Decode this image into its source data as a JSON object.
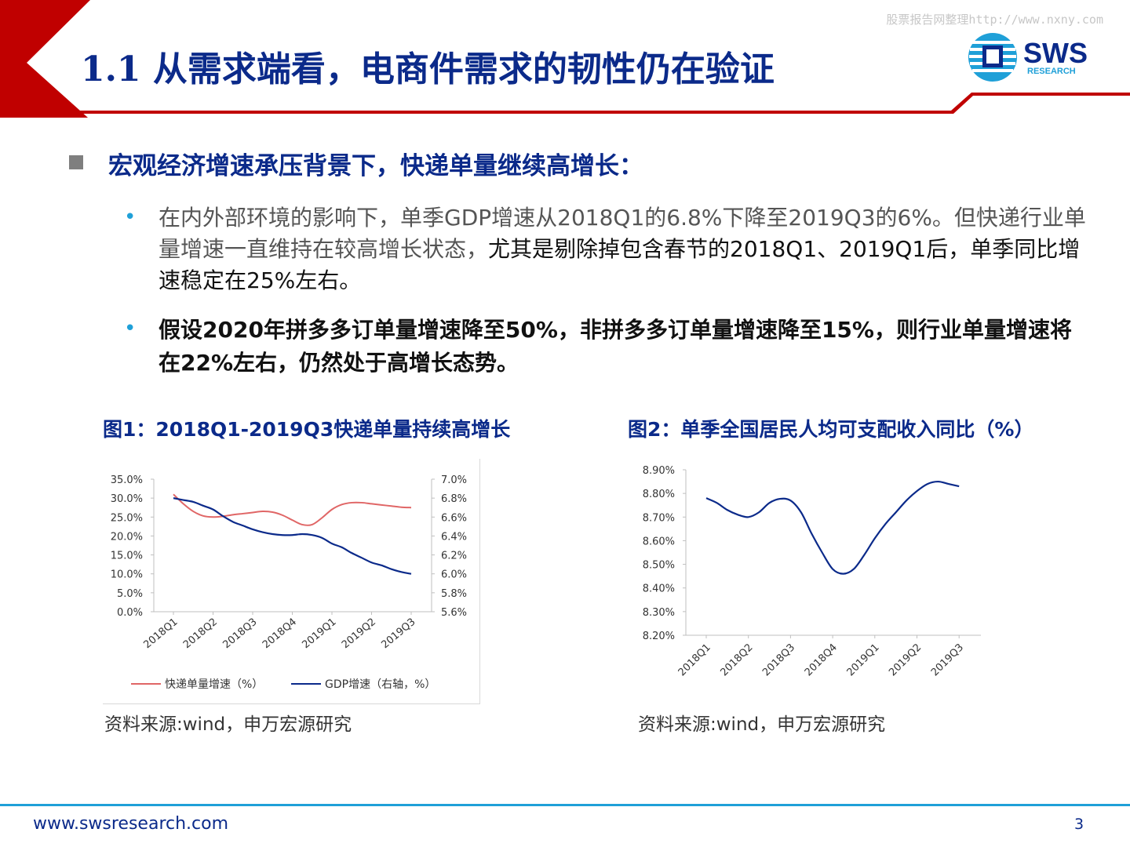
{
  "header": {
    "title": "1.1 从需求端看，电商件需求的韧性仍在验证",
    "watermark": "股票报告网整理http://www.nxny.com",
    "logo": {
      "name": "SWS",
      "sub": "RESEARCH",
      "icon": "sws-logo-icon"
    },
    "colors": {
      "accent_red": "#c00000",
      "brand_blue": "#0b2a8a",
      "bullet_blue": "#1fa0d8"
    }
  },
  "content": {
    "main_bullet": "宏观经济增速承压背景下，快递单量继续高增长：",
    "sub1_part1": "在内外部环境的影响下，单季GDP增速从2018Q1的6.8%下降至2019Q3的6%。但快递行业单量增速一直维持在较高增长状态，",
    "sub1_part2": "尤其是剔除掉包含春节的2018Q1、2019Q1后，单季同比增速稳定在25%左右。",
    "sub2": "假设2020年拼多多订单量增速降至50%，非拼多多订单量增速降至15%，则行业单量增速将在22%左右，仍然处于高增长态势。"
  },
  "figures": {
    "fig1_title": "图1：2018Q1-2019Q3快递单量持续高增长",
    "fig2_title": "图2：单季全国居民人均可支配收入同比（%）",
    "source1": "资料来源:wind，申万宏源研究",
    "source2": "资料来源:wind，申万宏源研究"
  },
  "footer": {
    "url": "www.swsresearch.com",
    "page": "3"
  },
  "chart_data": [
    {
      "type": "line",
      "dual_axis": true,
      "categories": [
        "2018Q1",
        "2018Q2",
        "2018Q3",
        "2018Q4",
        "2019Q1",
        "2019Q2",
        "2019Q3"
      ],
      "x": [
        0,
        0.25,
        0.5,
        0.75,
        1,
        1.25,
        1.5,
        1.75,
        2,
        2.25,
        2.5,
        2.75,
        3,
        3.25,
        3.5,
        3.75,
        4,
        4.25,
        4.5,
        4.75,
        5,
        5.25,
        5.5,
        5.75,
        6
      ],
      "series": [
        {
          "name": "快递单量增速（%）",
          "axis": "left",
          "color": "#e06666",
          "values": [
            31.0,
            28.5,
            26.5,
            25.3,
            25.0,
            25.2,
            25.6,
            25.9,
            26.2,
            26.5,
            26.3,
            25.5,
            24.2,
            23.0,
            23.0,
            24.8,
            27.0,
            28.3,
            28.8,
            28.8,
            28.5,
            28.2,
            27.9,
            27.6,
            27.5
          ]
        },
        {
          "name": "GDP增速（右轴，%）",
          "axis": "right",
          "color": "#0b2a8a",
          "values": [
            6.8,
            6.78,
            6.76,
            6.72,
            6.68,
            6.61,
            6.55,
            6.51,
            6.47,
            6.44,
            6.42,
            6.41,
            6.41,
            6.42,
            6.41,
            6.38,
            6.32,
            6.28,
            6.22,
            6.17,
            6.12,
            6.09,
            6.05,
            6.02,
            6.0
          ]
        }
      ],
      "y_left": {
        "min": 0,
        "max": 35,
        "ticks": [
          "0.0%",
          "5.0%",
          "10.0%",
          "15.0%",
          "20.0%",
          "25.0%",
          "30.0%",
          "35.0%"
        ]
      },
      "y_right": {
        "min": 5.6,
        "max": 7.0,
        "ticks": [
          "5.6%",
          "5.8%",
          "6.0%",
          "6.2%",
          "6.4%",
          "6.6%",
          "6.8%",
          "7.0%"
        ]
      },
      "legend_position": "bottom",
      "grid": false
    },
    {
      "type": "line",
      "categories": [
        "2018Q1",
        "2018Q2",
        "2018Q3",
        "2018Q4",
        "2019Q1",
        "2019Q2",
        "2019Q3"
      ],
      "x": [
        0,
        0.25,
        0.5,
        0.75,
        1,
        1.25,
        1.5,
        1.75,
        2,
        2.25,
        2.5,
        2.75,
        3,
        3.25,
        3.5,
        3.75,
        4,
        4.25,
        4.5,
        4.75,
        5,
        5.25,
        5.5,
        5.75,
        6
      ],
      "series": [
        {
          "color": "#0b2a8a",
          "values": [
            8.78,
            8.76,
            8.73,
            8.71,
            8.7,
            8.72,
            8.76,
            8.777,
            8.77,
            8.72,
            8.63,
            8.55,
            8.48,
            8.46,
            8.48,
            8.54,
            8.61,
            8.67,
            8.72,
            8.77,
            8.81,
            8.84,
            8.85,
            8.84,
            8.83
          ]
        }
      ],
      "y": {
        "min": 8.2,
        "max": 8.9,
        "ticks": [
          "8.20%",
          "8.30%",
          "8.40%",
          "8.50%",
          "8.60%",
          "8.70%",
          "8.80%",
          "8.90%"
        ]
      },
      "legend_position": "none",
      "grid": false
    }
  ]
}
